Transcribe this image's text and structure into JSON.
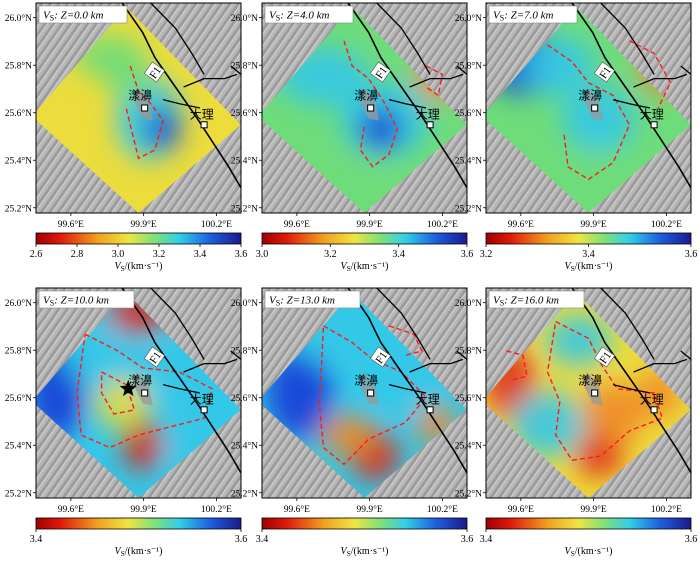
{
  "figure": {
    "lat_ticks": [
      "26.0°N",
      "25.8°N",
      "25.6°N",
      "25.4°N",
      "25.2°N"
    ],
    "lon_ticks": [
      "99.6°E",
      "99.9°E",
      "100.2°E"
    ],
    "fault_label": "F1",
    "town_yangbi": "漾濞",
    "town_dali": "大理",
    "colorbar_unit_prefix": "V",
    "colorbar_unit_sub": "S",
    "colorbar_unit_suffix": "/(km·s⁻¹)",
    "panels": [
      {
        "title_v": "V",
        "title_sub": "S",
        "title_rest": ": Z=0.0 km",
        "cbar_ticks": [
          "2.6",
          "2.8",
          "3.0",
          "3.2",
          "3.4",
          "3.6"
        ],
        "show_star": false
      },
      {
        "title_v": "V",
        "title_sub": "S",
        "title_rest": ": Z=4.0 km",
        "cbar_ticks": [
          "3.0",
          "3.2",
          "3.4",
          "3.6"
        ],
        "show_star": false
      },
      {
        "title_v": "V",
        "title_sub": "S",
        "title_rest": ": Z=7.0 km",
        "cbar_ticks": [
          "3.2",
          "3.4",
          "3.6"
        ],
        "show_star": false
      },
      {
        "title_v": "V",
        "title_sub": "S",
        "title_rest": ": Z=10.0 km",
        "cbar_ticks": [
          "3.4",
          "3.6"
        ],
        "show_star": true
      },
      {
        "title_v": "V",
        "title_sub": "S",
        "title_rest": ": Z=13.0 km",
        "cbar_ticks": [
          "3.4",
          "3.6"
        ],
        "show_star": false
      },
      {
        "title_v": "V",
        "title_sub": "S",
        "title_rest": ": Z=16.0 km",
        "cbar_ticks": [
          "3.4",
          "3.6"
        ],
        "show_star": false
      }
    ],
    "colors": {
      "blue": "#1a3bd6",
      "cyan": "#33c8e8",
      "green": "#6fdc7a",
      "yellow": "#ecdc3c",
      "orange": "#f08a2a",
      "red": "#e02818",
      "contour": "#ff1a1a",
      "fault": "#000000"
    }
  }
}
